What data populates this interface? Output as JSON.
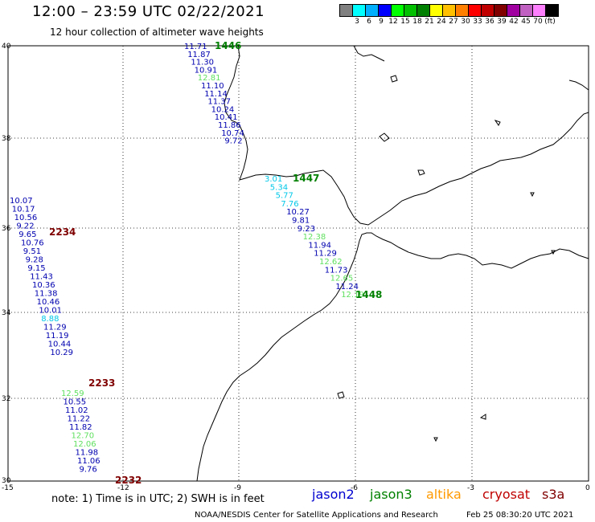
{
  "title": "12:00 – 23:59 UTC 02/22/2021",
  "subtitle": "12 hour collection of altimeter wave heights",
  "scale": {
    "unit": "(ft)",
    "colors": [
      "#808080",
      "#00ffff",
      "#00b0ff",
      "#0000ff",
      "#00ff00",
      "#00c000",
      "#008000",
      "#ffff00",
      "#ffc000",
      "#ff8000",
      "#ff0000",
      "#c00000",
      "#800000",
      "#a000a0",
      "#c060c0",
      "#ff80ff",
      "#000000"
    ],
    "labels": [
      "3",
      "6",
      "9",
      "12",
      "15",
      "18",
      "21",
      "24",
      "27",
      "30",
      "33",
      "36",
      "39",
      "42",
      "45",
      "70"
    ]
  },
  "axes": {
    "lat_labels": [
      "40",
      "38",
      "36",
      "34",
      "32",
      "30"
    ],
    "lon_labels": [
      "-15",
      "-12",
      "-9",
      "-6",
      "-3",
      "0"
    ]
  },
  "tracks": [
    {
      "label": "1446",
      "color": "#008000",
      "points": [
        {
          "v": "11.71",
          "c": "#0000b0"
        },
        {
          "v": "11.87",
          "c": "#0000b0"
        },
        {
          "v": "11.30",
          "c": "#0000b0"
        },
        {
          "v": "10.91",
          "c": "#0000b0"
        },
        {
          "v": "12.81",
          "c": "#60e060"
        },
        {
          "v": "11.10",
          "c": "#0000b0"
        },
        {
          "v": "11.14",
          "c": "#0000b0"
        },
        {
          "v": "11.37",
          "c": "#0000b0"
        },
        {
          "v": "10.24",
          "c": "#0000b0"
        },
        {
          "v": "10.41",
          "c": "#0000b0"
        },
        {
          "v": "11.86",
          "c": "#0000b0"
        },
        {
          "v": "10.74",
          "c": "#0000b0"
        },
        {
          "v": "9.72",
          "c": "#0000b0"
        }
      ]
    },
    {
      "label": "1447",
      "color": "#008000",
      "points": [
        {
          "v": "3.01",
          "c": "#00c8e8"
        },
        {
          "v": "5.34",
          "c": "#00c8e8"
        },
        {
          "v": "5.77",
          "c": "#00c8e8"
        },
        {
          "v": "7.76",
          "c": "#00c8e8"
        },
        {
          "v": "10.27",
          "c": "#0000b0"
        },
        {
          "v": "9.81",
          "c": "#0000b0"
        },
        {
          "v": "9.23",
          "c": "#0000b0"
        },
        {
          "v": "12.38",
          "c": "#60e060"
        },
        {
          "v": "11.94",
          "c": "#0000b0"
        },
        {
          "v": "11.29",
          "c": "#0000b0"
        },
        {
          "v": "12.62",
          "c": "#60e060"
        },
        {
          "v": "11.73",
          "c": "#0000b0"
        },
        {
          "v": "12.65",
          "c": "#60e060"
        },
        {
          "v": "11.24",
          "c": "#0000b0"
        },
        {
          "v": "12.19",
          "c": "#60e060"
        }
      ]
    },
    {
      "label": "1448",
      "color": "#008000"
    },
    {
      "label": "2234",
      "color": "#800000",
      "points": [
        {
          "v": "10.07",
          "c": "#0000b0"
        },
        {
          "v": "10.17",
          "c": "#0000b0"
        },
        {
          "v": "10.56",
          "c": "#0000b0"
        },
        {
          "v": "9.22",
          "c": "#0000b0"
        },
        {
          "v": "9.65",
          "c": "#0000b0"
        },
        {
          "v": "10.76",
          "c": "#0000b0"
        },
        {
          "v": "9.51",
          "c": "#0000b0"
        },
        {
          "v": "9.28",
          "c": "#0000b0"
        },
        {
          "v": "9.15",
          "c": "#0000b0"
        },
        {
          "v": "11.43",
          "c": "#0000b0"
        },
        {
          "v": "10.36",
          "c": "#0000b0"
        },
        {
          "v": "11.38",
          "c": "#0000b0"
        },
        {
          "v": "10.46",
          "c": "#0000b0"
        },
        {
          "v": "10.01",
          "c": "#0000b0"
        },
        {
          "v": "8.88",
          "c": "#00c8e8"
        },
        {
          "v": "11.29",
          "c": "#0000b0"
        },
        {
          "v": "11.19",
          "c": "#0000b0"
        },
        {
          "v": "10.44",
          "c": "#0000b0"
        },
        {
          "v": "10.29",
          "c": "#0000b0"
        }
      ]
    },
    {
      "label": "2233",
      "color": "#800000",
      "points": [
        {
          "v": "12.59",
          "c": "#60e060"
        },
        {
          "v": "10.55",
          "c": "#0000b0"
        },
        {
          "v": "11.02",
          "c": "#0000b0"
        },
        {
          "v": "11.22",
          "c": "#0000b0"
        },
        {
          "v": "11.82",
          "c": "#0000b0"
        },
        {
          "v": "12.70",
          "c": "#60e060"
        },
        {
          "v": "12.06",
          "c": "#60e060"
        },
        {
          "v": "11.98",
          "c": "#0000b0"
        },
        {
          "v": "11.06",
          "c": "#0000b0"
        },
        {
          "v": "9.76",
          "c": "#0000b0"
        }
      ]
    },
    {
      "label": "2232",
      "color": "#800000"
    }
  ],
  "note": "note:  1) Time is in UTC;  2) SWH is in feet",
  "satellites": [
    {
      "name": "jason2",
      "color": "#0000d0"
    },
    {
      "name": "jason3",
      "color": "#008000"
    },
    {
      "name": "altika",
      "color": "#ff9900"
    },
    {
      "name": "cryosat",
      "color": "#c00000"
    },
    {
      "name": "s3a",
      "color": "#800000"
    }
  ],
  "credit": "NOAA/NESDIS Center for Satellite Applications and Research",
  "timestamp": "Feb 25 08:30:20 UTC 2021"
}
